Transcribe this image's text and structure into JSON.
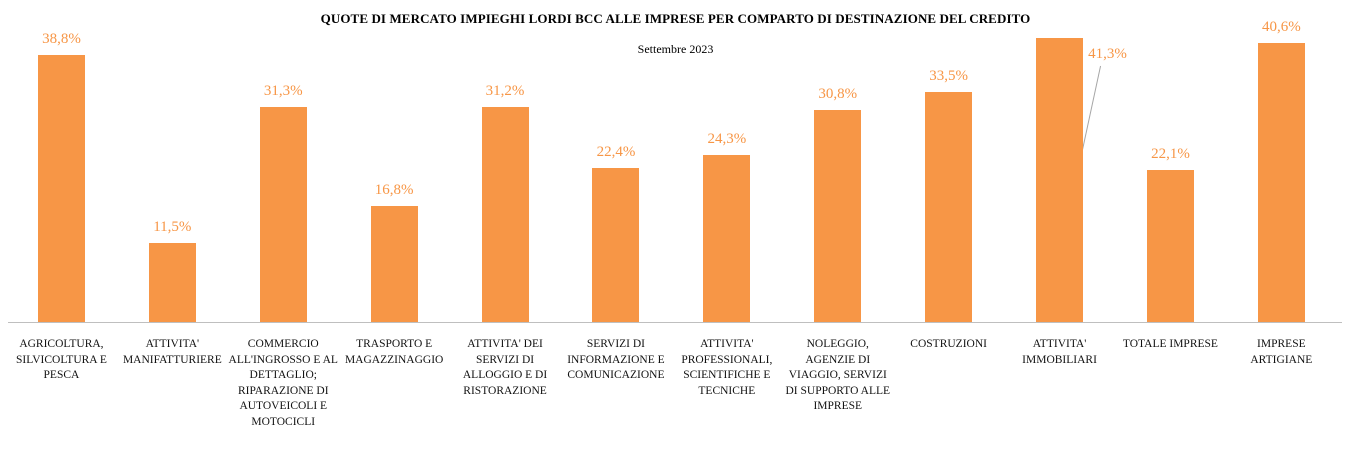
{
  "chart_data": {
    "type": "bar",
    "title": "QUOTE DI MERCATO IMPIEGHI LORDI BCC ALLE IMPRESE PER COMPARTO DI DESTINAZIONE DEL CREDITO",
    "subtitle": "Settembre 2023",
    "categories": [
      "AGRICOLTURA, SILVICOLTURA E PESCA",
      "ATTIVITA' MANIFATTURIERE",
      "COMMERCIO ALL'INGROSSO E AL DETTAGLIO; RIPARAZIONE DI AUTOVEICOLI E MOTOCICLI",
      "TRASPORTO E MAGAZZINAGGIO",
      "ATTIVITA' DEI SERVIZI DI ALLOGGIO E DI RISTORAZIONE",
      "SERVIZI DI INFORMAZIONE E COMUNICAZIONE",
      "ATTIVITA' PROFESSIONALI, SCIENTIFICHE E TECNICHE",
      "NOLEGGIO, AGENZIE DI VIAGGIO, SERVIZI DI SUPPORTO ALLE IMPRESE",
      "COSTRUZIONI",
      "ATTIVITA' IMMOBILIARI",
      "TOTALE IMPRESE",
      "IMPRESE ARTIGIANE"
    ],
    "values": [
      38.8,
      11.5,
      31.3,
      16.8,
      31.2,
      22.4,
      24.3,
      30.8,
      33.5,
      41.3,
      22.1,
      40.6
    ],
    "value_labels": [
      "38,8%",
      "11,5%",
      "31,3%",
      "16,8%",
      "31,2%",
      "22,4%",
      "24,3%",
      "30,8%",
      "33,5%",
      "41,3%",
      "22,1%",
      "40,6%"
    ],
    "color": "#f79646"
  }
}
